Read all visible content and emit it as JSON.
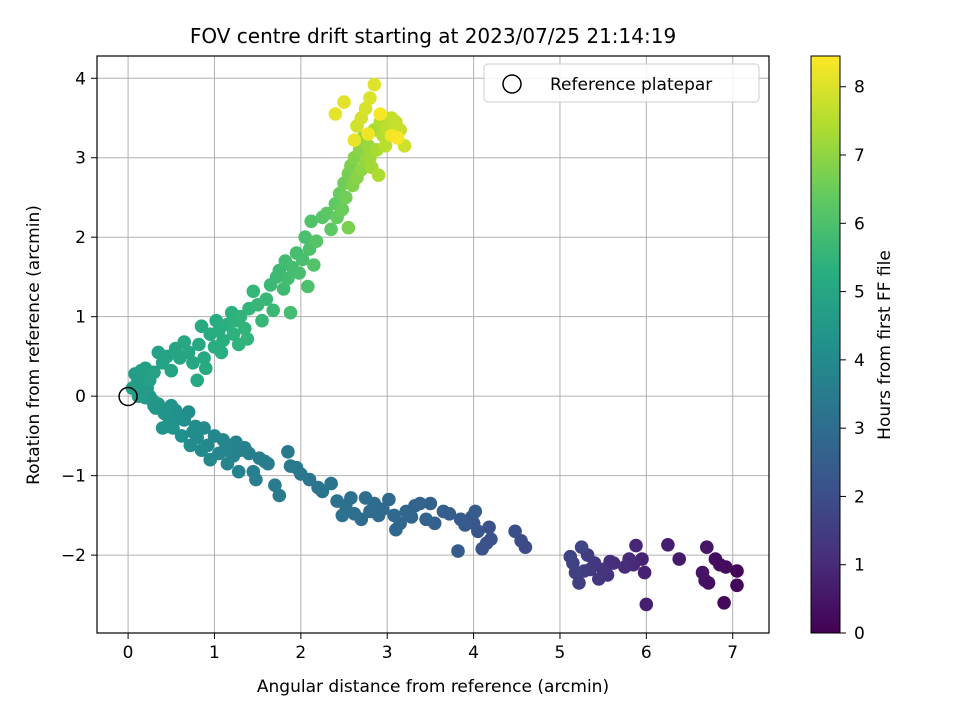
{
  "chart_data": {
    "type": "scatter",
    "title": "FOV centre drift starting at 2023/07/25 21:14:19",
    "xlabel": "Angular distance from reference (arcmin)",
    "ylabel": "Rotation from reference (arcmin)",
    "xlim": [
      -0.36,
      7.42
    ],
    "ylim": [
      -2.98,
      4.28
    ],
    "xticks": [
      0,
      1,
      2,
      3,
      4,
      5,
      6,
      7
    ],
    "yticks": [
      -2,
      -1,
      0,
      1,
      2,
      3,
      4
    ],
    "grid": true,
    "legend": {
      "placement": "top-right",
      "entries": [
        "Reference platepar"
      ]
    },
    "reference_point": {
      "x": 0,
      "y": 0,
      "label": "Reference platepar"
    },
    "colorbar": {
      "label": "Hours from first FF file",
      "range": [
        0,
        8.45
      ],
      "ticks": [
        0,
        1,
        2,
        3,
        4,
        5,
        6,
        7,
        8
      ],
      "colormap": "viridis"
    },
    "series": [
      {
        "points": [
          [
            7.05,
            -2.2,
            0.1
          ],
          [
            7.05,
            -2.38,
            0.12
          ],
          [
            6.9,
            -2.6,
            0.2
          ],
          [
            6.92,
            -2.15,
            0.25
          ],
          [
            6.85,
            -2.12,
            0.28
          ],
          [
            6.8,
            -2.05,
            0.3
          ],
          [
            6.72,
            -2.35,
            0.35
          ],
          [
            6.68,
            -2.32,
            0.4
          ],
          [
            6.65,
            -2.22,
            0.45
          ],
          [
            6.7,
            -1.9,
            0.5
          ],
          [
            6.38,
            -2.05,
            0.6
          ],
          [
            6.25,
            -1.87,
            0.7
          ],
          [
            6.0,
            -2.62,
            0.75
          ],
          [
            5.98,
            -2.22,
            0.8
          ],
          [
            5.95,
            -2.05,
            0.85
          ],
          [
            5.88,
            -1.88,
            0.9
          ],
          [
            5.85,
            -2.12,
            0.95
          ],
          [
            5.8,
            -2.05,
            1.0
          ],
          [
            5.75,
            -2.15,
            1.05
          ],
          [
            5.62,
            -2.1,
            1.1
          ],
          [
            5.58,
            -2.08,
            1.15
          ],
          [
            5.55,
            -2.25,
            1.2
          ],
          [
            5.5,
            -2.18,
            1.25
          ],
          [
            5.45,
            -2.3,
            1.3
          ],
          [
            5.4,
            -2.1,
            1.35
          ],
          [
            5.35,
            -2.18,
            1.4
          ],
          [
            5.32,
            -2.0,
            1.45
          ],
          [
            5.28,
            -2.2,
            1.5
          ],
          [
            5.22,
            -2.35,
            1.55
          ],
          [
            5.18,
            -2.22,
            1.6
          ],
          [
            5.15,
            -2.1,
            1.65
          ],
          [
            5.12,
            -2.02,
            1.7
          ],
          [
            5.25,
            -1.9,
            1.75
          ],
          [
            4.6,
            -1.9,
            1.9
          ],
          [
            4.55,
            -1.82,
            1.95
          ],
          [
            4.48,
            -1.7,
            2.0
          ],
          [
            4.18,
            -1.65,
            2.05
          ],
          [
            4.2,
            -1.8,
            2.1
          ],
          [
            4.15,
            -1.85,
            2.12
          ],
          [
            4.1,
            -1.92,
            2.15
          ],
          [
            4.05,
            -1.7,
            2.2
          ],
          [
            4.0,
            -1.6,
            2.25
          ],
          [
            3.98,
            -1.52,
            2.3
          ],
          [
            3.9,
            -1.62,
            2.35
          ],
          [
            3.85,
            -1.55,
            2.4
          ],
          [
            4.02,
            -1.45,
            2.42
          ],
          [
            3.82,
            -1.95,
            2.45
          ],
          [
            3.72,
            -1.48,
            2.5
          ],
          [
            3.65,
            -1.45,
            2.55
          ],
          [
            3.55,
            -1.6,
            2.6
          ],
          [
            3.5,
            -1.35,
            2.62
          ],
          [
            3.45,
            -1.55,
            2.65
          ],
          [
            3.38,
            -1.35,
            2.7
          ],
          [
            3.32,
            -1.38,
            2.72
          ],
          [
            3.28,
            -1.52,
            2.75
          ],
          [
            3.22,
            -1.45,
            2.78
          ],
          [
            3.15,
            -1.6,
            2.8
          ],
          [
            3.1,
            -1.68,
            2.82
          ],
          [
            3.08,
            -1.5,
            2.85
          ],
          [
            3.02,
            -1.3,
            2.88
          ],
          [
            2.95,
            -1.42,
            2.9
          ],
          [
            2.9,
            -1.5,
            2.92
          ],
          [
            2.85,
            -1.35,
            2.95
          ],
          [
            2.8,
            -1.45,
            2.98
          ],
          [
            2.75,
            -1.28,
            3.0
          ],
          [
            2.7,
            -1.55,
            3.02
          ],
          [
            2.62,
            -1.48,
            3.05
          ],
          [
            2.58,
            -1.28,
            3.08
          ],
          [
            2.52,
            -1.38,
            3.1
          ],
          [
            2.48,
            -1.5,
            3.12
          ],
          [
            2.42,
            -1.32,
            3.15
          ],
          [
            2.25,
            -1.2,
            3.2
          ],
          [
            2.2,
            -1.15,
            3.22
          ],
          [
            2.35,
            -1.1,
            3.25
          ],
          [
            2.1,
            -1.05,
            3.3
          ],
          [
            2.0,
            -0.98,
            3.35
          ],
          [
            1.95,
            -0.9,
            3.38
          ],
          [
            1.88,
            -0.88,
            3.4
          ],
          [
            1.85,
            -0.7,
            3.42
          ],
          [
            1.75,
            -1.25,
            3.45
          ],
          [
            1.7,
            -1.12,
            3.48
          ],
          [
            1.62,
            -0.85,
            3.5
          ],
          [
            1.58,
            -0.82,
            3.52
          ],
          [
            1.52,
            -0.78,
            3.55
          ],
          [
            1.48,
            -1.05,
            3.58
          ],
          [
            1.45,
            -0.95,
            3.6
          ],
          [
            1.4,
            -0.72,
            3.62
          ],
          [
            1.35,
            -0.65,
            3.65
          ],
          [
            1.3,
            -0.68,
            3.68
          ],
          [
            1.28,
            -0.95,
            3.7
          ],
          [
            1.25,
            -0.58,
            3.72
          ],
          [
            1.22,
            -0.75,
            3.75
          ],
          [
            1.2,
            -0.62,
            3.78
          ],
          [
            1.15,
            -0.85,
            3.8
          ],
          [
            1.12,
            -0.68,
            3.82
          ],
          [
            1.1,
            -0.55,
            3.85
          ],
          [
            1.05,
            -0.72,
            3.88
          ],
          [
            1.0,
            -0.5,
            3.9
          ],
          [
            0.95,
            -0.8,
            3.92
          ],
          [
            0.92,
            -0.62,
            3.95
          ],
          [
            0.88,
            -0.4,
            3.98
          ],
          [
            0.85,
            -0.68,
            4.0
          ],
          [
            0.8,
            -0.52,
            4.02
          ],
          [
            0.78,
            -0.38,
            4.05
          ],
          [
            0.75,
            -0.45,
            4.08
          ],
          [
            0.72,
            -0.62,
            4.1
          ],
          [
            0.7,
            -0.2,
            4.12
          ],
          [
            0.65,
            -0.3,
            4.15
          ],
          [
            0.62,
            -0.5,
            4.18
          ],
          [
            0.58,
            -0.28,
            4.2
          ],
          [
            0.55,
            -0.18,
            4.22
          ],
          [
            0.52,
            -0.4,
            4.25
          ],
          [
            0.5,
            -0.12,
            4.28
          ],
          [
            0.48,
            -0.3,
            4.3
          ],
          [
            0.45,
            -0.38,
            4.32
          ],
          [
            0.42,
            -0.22,
            4.35
          ],
          [
            0.4,
            -0.4,
            4.38
          ],
          [
            0.35,
            -0.1,
            4.4
          ],
          [
            0.32,
            -0.15,
            4.42
          ],
          [
            0.3,
            -0.12,
            4.45
          ],
          [
            0.28,
            -0.05,
            4.48
          ],
          [
            0.25,
            0.0,
            4.5
          ],
          [
            0.22,
            0.1,
            4.52
          ],
          [
            0.2,
            -0.02,
            4.55
          ],
          [
            0.18,
            0.05,
            4.58
          ],
          [
            0.15,
            0.18,
            4.6
          ],
          [
            0.12,
            0.0,
            4.62
          ],
          [
            0.1,
            0.15,
            4.65
          ],
          [
            0.08,
            0.28,
            4.68
          ],
          [
            0.05,
            0.1,
            4.7
          ],
          [
            0.15,
            0.32,
            4.72
          ],
          [
            0.2,
            0.35,
            4.75
          ],
          [
            0.25,
            0.2,
            4.78
          ],
          [
            0.3,
            0.3,
            4.8
          ],
          [
            0.35,
            0.55,
            4.82
          ],
          [
            0.4,
            0.42,
            4.85
          ],
          [
            0.45,
            0.5,
            4.88
          ],
          [
            0.5,
            0.32,
            4.9
          ],
          [
            0.55,
            0.6,
            4.92
          ],
          [
            0.6,
            0.48,
            4.95
          ],
          [
            0.65,
            0.68,
            4.98
          ],
          [
            0.7,
            0.55,
            5.0
          ],
          [
            0.75,
            0.42,
            5.02
          ],
          [
            0.8,
            0.2,
            5.05
          ],
          [
            0.82,
            0.65,
            5.08
          ],
          [
            0.85,
            0.88,
            5.1
          ],
          [
            0.88,
            0.48,
            5.12
          ],
          [
            0.9,
            0.35,
            5.15
          ],
          [
            0.95,
            0.78,
            5.18
          ],
          [
            1.0,
            0.62,
            5.2
          ],
          [
            1.02,
            0.95,
            5.22
          ],
          [
            1.05,
            0.82,
            5.25
          ],
          [
            1.08,
            0.55,
            5.28
          ],
          [
            1.1,
            0.7,
            5.3
          ],
          [
            1.15,
            0.9,
            5.32
          ],
          [
            1.2,
            1.05,
            5.35
          ],
          [
            1.22,
            0.78,
            5.38
          ],
          [
            1.25,
            0.95,
            5.4
          ],
          [
            1.28,
            0.65,
            5.42
          ],
          [
            1.3,
            1.0,
            5.45
          ],
          [
            1.35,
            0.85,
            5.48
          ],
          [
            1.38,
            0.72,
            5.5
          ],
          [
            1.4,
            1.1,
            5.52
          ],
          [
            1.45,
            1.32,
            5.55
          ],
          [
            1.5,
            1.15,
            5.58
          ],
          [
            1.55,
            0.95,
            5.6
          ],
          [
            1.6,
            1.22,
            5.62
          ],
          [
            1.65,
            1.4,
            5.65
          ],
          [
            1.68,
            1.08,
            5.68
          ],
          [
            1.72,
            1.5,
            5.7
          ],
          [
            1.75,
            1.58,
            5.72
          ],
          [
            1.8,
            1.35,
            5.75
          ],
          [
            1.82,
            1.7,
            5.78
          ],
          [
            1.85,
            1.48,
            5.8
          ],
          [
            1.88,
            1.05,
            5.82
          ],
          [
            1.9,
            1.62,
            5.85
          ],
          [
            1.95,
            1.8,
            5.88
          ],
          [
            1.98,
            1.55,
            5.9
          ],
          [
            2.02,
            1.72,
            5.92
          ],
          [
            2.05,
            2.0,
            5.95
          ],
          [
            2.08,
            1.38,
            5.98
          ],
          [
            2.1,
            1.85,
            6.0
          ],
          [
            2.12,
            2.2,
            6.05
          ],
          [
            2.15,
            1.65,
            6.1
          ],
          [
            2.18,
            1.95,
            6.15
          ],
          [
            2.25,
            2.25,
            6.2
          ],
          [
            2.3,
            2.3,
            6.25
          ],
          [
            2.35,
            2.1,
            6.3
          ],
          [
            2.4,
            2.42,
            6.35
          ],
          [
            2.42,
            2.25,
            6.4
          ],
          [
            2.45,
            2.55,
            6.45
          ],
          [
            2.48,
            2.35,
            6.5
          ],
          [
            2.5,
            2.68,
            6.55
          ],
          [
            2.52,
            2.5,
            6.6
          ],
          [
            2.55,
            2.8,
            6.65
          ],
          [
            2.55,
            2.12,
            6.7
          ],
          [
            2.58,
            2.9,
            6.75
          ],
          [
            2.6,
            2.65,
            6.8
          ],
          [
            2.62,
            3.0,
            6.85
          ],
          [
            2.65,
            2.75,
            6.9
          ],
          [
            2.68,
            3.1,
            6.95
          ],
          [
            2.7,
            2.85,
            7.0
          ],
          [
            2.72,
            3.25,
            7.05
          ],
          [
            2.75,
            2.95,
            7.1
          ],
          [
            2.78,
            3.15,
            7.15
          ],
          [
            2.8,
            3.0,
            7.2
          ],
          [
            2.82,
            2.88,
            7.25
          ],
          [
            2.85,
            3.35,
            7.3
          ],
          [
            2.88,
            3.1,
            7.35
          ],
          [
            2.9,
            2.78,
            7.4
          ],
          [
            2.92,
            3.45,
            7.45
          ],
          [
            2.95,
            3.28,
            7.5
          ],
          [
            2.98,
            3.15,
            7.55
          ],
          [
            3.0,
            3.38,
            7.6
          ],
          [
            3.05,
            3.5,
            7.65
          ],
          [
            3.1,
            3.45,
            7.7
          ],
          [
            3.15,
            3.35,
            7.75
          ],
          [
            3.2,
            3.15,
            7.8
          ],
          [
            2.65,
            3.4,
            7.85
          ],
          [
            2.7,
            3.5,
            7.9
          ],
          [
            2.75,
            3.62,
            7.95
          ],
          [
            2.8,
            3.75,
            8.0
          ],
          [
            2.85,
            3.92,
            8.05
          ],
          [
            2.5,
            3.7,
            8.1
          ],
          [
            2.4,
            3.55,
            8.15
          ],
          [
            2.62,
            3.22,
            8.2
          ],
          [
            2.78,
            3.3,
            8.25
          ],
          [
            3.05,
            3.28,
            8.3
          ],
          [
            2.92,
            3.55,
            8.35
          ],
          [
            3.12,
            3.25,
            8.4
          ]
        ]
      }
    ]
  }
}
